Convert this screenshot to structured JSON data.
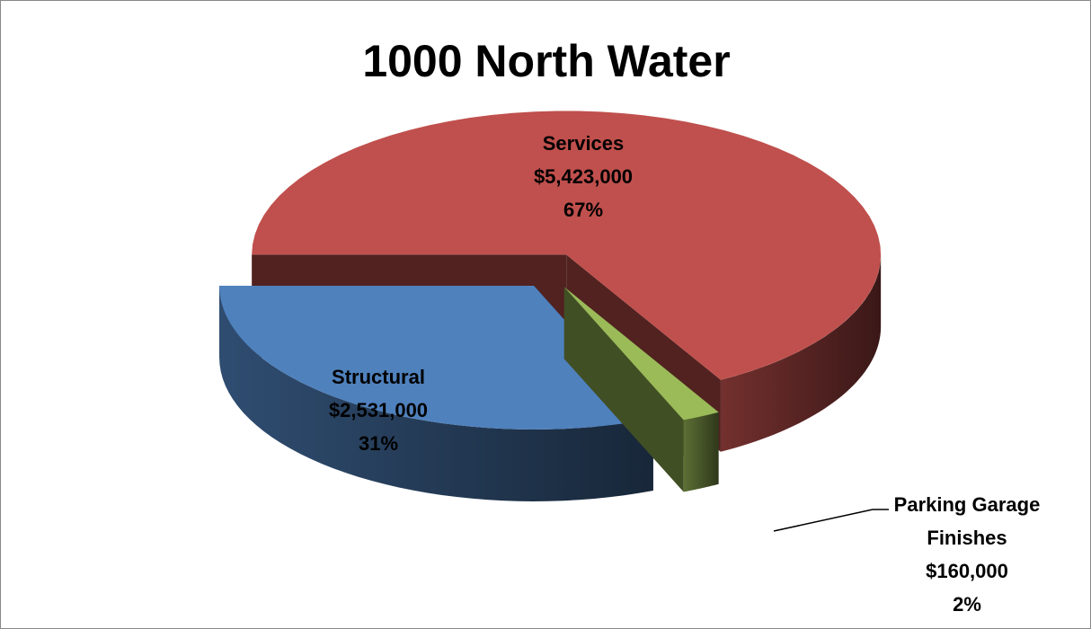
{
  "chart_data": {
    "type": "pie",
    "title": "1000 North Water",
    "categories": [
      "Services",
      "Parking Garage Finishes",
      "Structural"
    ],
    "values": [
      5423000,
      160000,
      2531000
    ],
    "value_labels": [
      "$5,423,000",
      "$160,000",
      "$2,531,000"
    ],
    "percent_labels": [
      "67%",
      "2%",
      "31%"
    ],
    "colors": [
      "#c0504d",
      "#9bbb59",
      "#4f81bd"
    ]
  }
}
